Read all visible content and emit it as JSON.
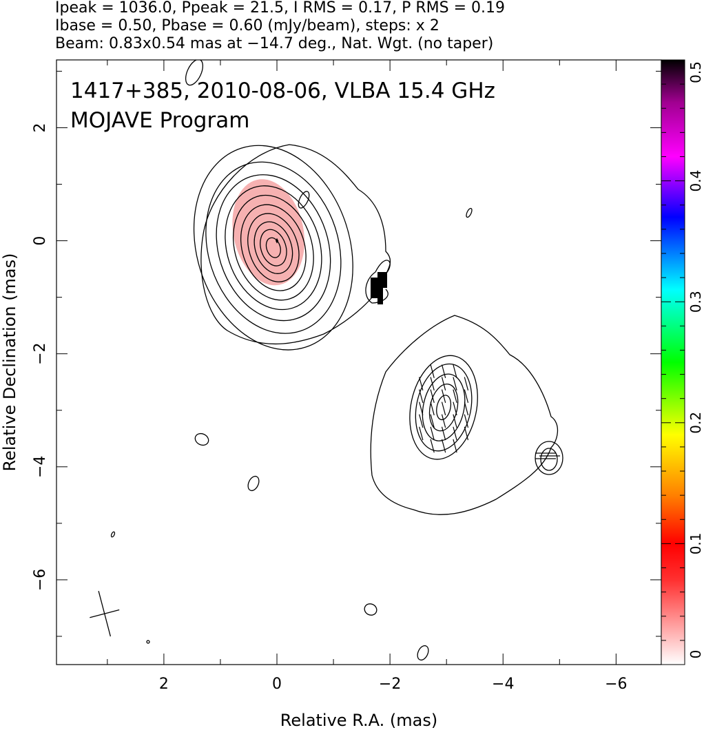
{
  "header": {
    "line1": "Ipeak = 1036.0, Ppeak = 21.5, I RMS = 0.17, P RMS = 0.19",
    "line2": "Ibase = 0.50, Pbase = 0.60 (mJy/beam), steps: x 2",
    "line3": "Beam: 0.83x0.54 mas at −14.7 deg., Nat. Wgt. (no taper)"
  },
  "chart_data": {
    "type": "heatmap",
    "title_line1": "1417+385, 2010-08-06, VLBA 15.4 GHz",
    "title_line2": "MOJAVE Program",
    "xlabel": "Relative R.A. (mas)",
    "ylabel": "Relative Declination (mas)",
    "xlim": [
      3.9,
      -6.8
    ],
    "ylim": [
      -7.5,
      3.2
    ],
    "x_ticks": [
      2,
      0,
      -2,
      -4,
      -6
    ],
    "x_tick_labels": [
      "2",
      "0",
      "−2",
      "−4",
      "−6"
    ],
    "y_ticks": [
      2,
      0,
      -2,
      -4,
      -6
    ],
    "y_tick_labels": [
      "2",
      "0",
      "−2",
      "−4",
      "−6"
    ],
    "colorbar": {
      "range": [
        0,
        0.5
      ],
      "ticks": [
        0,
        0.1,
        0.2,
        0.3,
        0.4,
        0.5
      ],
      "tick_labels": [
        "0",
        "0.1",
        "0.2",
        "0.3",
        "0.4",
        "0.5"
      ],
      "colors": [
        "#ffffff",
        "#ff0000",
        "#ff8000",
        "#ffff00",
        "#00ff00",
        "#00ffff",
        "#0000ff",
        "#ff00ff",
        "#000000"
      ]
    },
    "core": {
      "x": 0.0,
      "y": 0.0,
      "contour_radii_x": [
        1.35,
        1.15,
        0.97,
        0.82,
        0.68,
        0.55,
        0.43,
        0.32,
        0.22,
        0.12
      ],
      "contour_radii_y": [
        1.85,
        1.55,
        1.32,
        1.12,
        0.95,
        0.78,
        0.62,
        0.47,
        0.33,
        0.18
      ]
    },
    "polarization_patch": {
      "x": 0.15,
      "y": 0.15,
      "rx": 0.62,
      "ry": 0.95,
      "color": "#f5a3a3"
    },
    "jet_component": {
      "x": -2.95,
      "y": -2.95,
      "contour_radii_x": [
        0.58,
        0.48,
        0.36,
        0.24,
        0.12
      ],
      "contour_radii_y": [
        0.93,
        0.78,
        0.6,
        0.42,
        0.22
      ]
    },
    "beam": {
      "x": 3.05,
      "y": -6.6,
      "major": 0.83,
      "minor": 0.54,
      "pa": -14.7
    }
  }
}
